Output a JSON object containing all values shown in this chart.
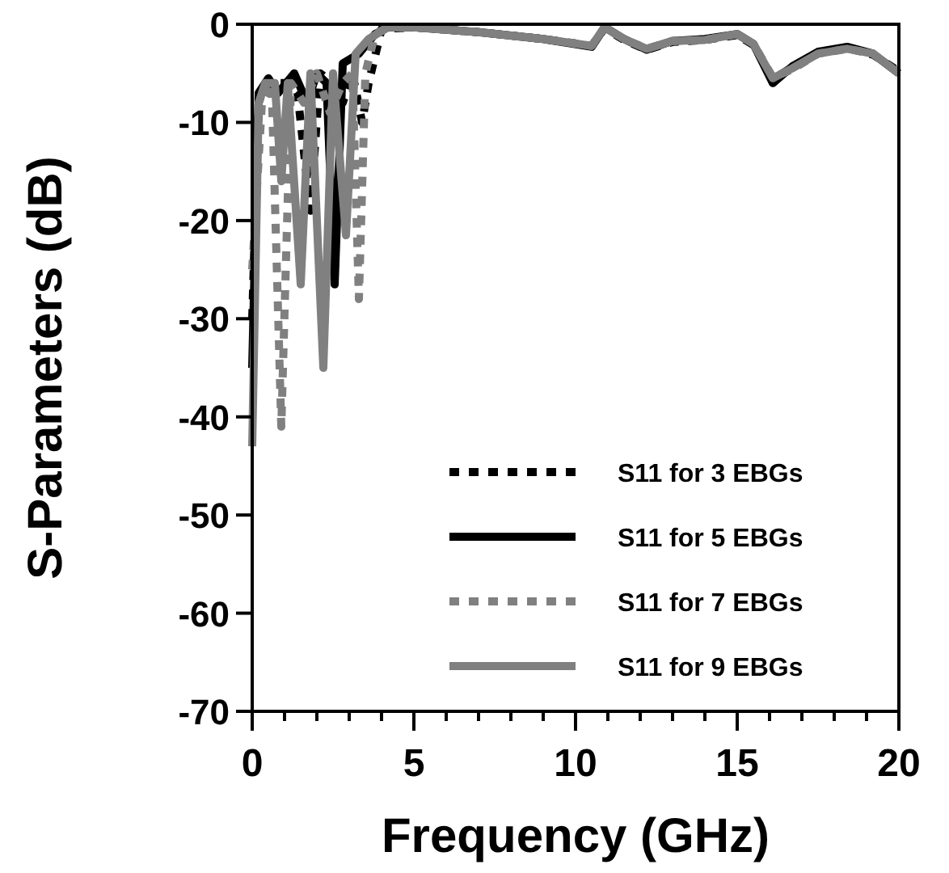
{
  "chart_data": {
    "type": "line",
    "xlabel": "Frequency (GHz)",
    "ylabel": "S-Parameters (dB)",
    "xlim": [
      0,
      20
    ],
    "ylim": [
      -70,
      0
    ],
    "xticks": [
      0,
      {
        "value": 1,
        "label": null
      },
      {
        "value": 2,
        "label": null
      },
      {
        "value": 3,
        "label": null
      },
      {
        "value": 4,
        "label": null
      },
      5,
      {
        "value": 6,
        "label": null
      },
      {
        "value": 7,
        "label": null
      },
      {
        "value": 8,
        "label": null
      },
      {
        "value": 9,
        "label": null
      },
      10,
      {
        "value": 11,
        "label": null
      },
      {
        "value": 12,
        "label": null
      },
      {
        "value": 13,
        "label": null
      },
      {
        "value": 14,
        "label": null
      },
      15,
      {
        "value": 16,
        "label": null
      },
      {
        "value": 17,
        "label": null
      },
      {
        "value": 18,
        "label": null
      },
      {
        "value": 19,
        "label": null
      },
      20
    ],
    "yticks": [
      -70,
      -60,
      -50,
      -40,
      -30,
      -20,
      -10,
      0
    ],
    "grid": false,
    "legend": "bottom right",
    "series": [
      {
        "name": "S11 for 3 EBGs",
        "color": "#000000",
        "line_style": "dashed",
        "x": [
          0,
          0.2,
          0.4,
          0.7,
          1.1,
          1.4,
          1.8,
          2.1,
          2.5,
          2.8,
          3.1,
          3.4,
          3.6,
          4,
          5,
          7,
          9,
          10.5,
          10.9,
          11.5,
          12.2,
          13,
          14,
          15,
          15.5,
          16.1,
          16.7,
          17.5,
          18.4,
          19.2,
          20
        ],
        "values": [
          -30,
          -8,
          -6,
          -6,
          -6,
          -7,
          -19,
          -5,
          -6,
          -8,
          -5,
          -10,
          -6,
          -0.5,
          -0.3,
          -0.8,
          -1.5,
          -2.2,
          -0.4,
          -1.6,
          -2.6,
          -1.8,
          -1.6,
          -1.1,
          -2.1,
          -5.6,
          -4.4,
          -2.9,
          -2.4,
          -3.1,
          -4.8
        ]
      },
      {
        "name": "S11 for 5 EBGs",
        "color": "#000000",
        "line_style": "solid",
        "x": [
          0,
          0.2,
          0.5,
          0.8,
          1.3,
          1.7,
          2,
          2.3,
          2.55,
          2.8,
          3.3,
          3.8,
          4.2,
          5,
          7,
          9,
          10.5,
          10.9,
          11.5,
          12.2,
          13,
          14,
          15,
          15.5,
          16.1,
          16.7,
          17.5,
          18.4,
          19.2,
          20
        ],
        "values": [
          -35,
          -7,
          -5.5,
          -7,
          -5,
          -8,
          -5,
          -6,
          -26.5,
          -4,
          -3,
          -1,
          -0.3,
          -0.3,
          -0.8,
          -1.5,
          -2.3,
          -0.3,
          -1.5,
          -2.6,
          -1.7,
          -1.5,
          -1,
          -2,
          -6,
          -4.3,
          -2.8,
          -2.3,
          -3,
          -5
        ]
      },
      {
        "name": "S11 for 7 EBGs",
        "color": "#808080",
        "line_style": "dashed",
        "x": [
          0,
          0.3,
          0.6,
          0.9,
          1.2,
          1.6,
          2,
          2.4,
          2.8,
          3.1,
          3.3,
          3.5,
          3.8,
          4.2,
          5,
          7,
          9,
          10.5,
          10.9,
          11.5,
          12.2,
          13,
          14,
          15,
          15.5,
          16.1,
          16.7,
          17.5,
          18.4,
          19.2,
          20
        ],
        "values": [
          -25,
          -8,
          -6,
          -41,
          -6,
          -8,
          -5,
          -9,
          -6,
          -5,
          -28,
          -5,
          -1,
          -0.3,
          -0.3,
          -0.8,
          -1.5,
          -2.2,
          -0.3,
          -1.5,
          -2.5,
          -1.7,
          -1.6,
          -1,
          -2,
          -5.4,
          -4.6,
          -3,
          -2.5,
          -3,
          -5
        ]
      },
      {
        "name": "S11 for 9 EBGs",
        "color": "#808080",
        "line_style": "solid",
        "x": [
          0,
          0.2,
          0.4,
          0.7,
          0.9,
          1.1,
          1.5,
          1.8,
          2.2,
          2.5,
          2.9,
          3.2,
          3.6,
          4.2,
          5,
          7,
          9,
          10.5,
          10.9,
          11.5,
          12.2,
          13,
          14,
          15,
          15.5,
          16.1,
          16.7,
          17.5,
          18.4,
          19.2,
          20
        ],
        "values": [
          -43,
          -8,
          -6,
          -6,
          -16,
          -6,
          -26.5,
          -5,
          -35,
          -5,
          -21.5,
          -3,
          -1.5,
          -0.3,
          -0.3,
          -0.8,
          -1.5,
          -2.2,
          -0.3,
          -1.5,
          -2.5,
          -1.7,
          -1.6,
          -1,
          -2,
          -5.5,
          -4.5,
          -3,
          -2.5,
          -3,
          -5
        ]
      }
    ]
  }
}
